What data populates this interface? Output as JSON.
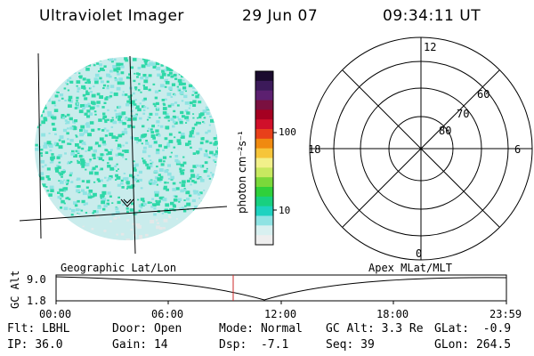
{
  "header": {
    "title": "Ultraviolet Imager",
    "date": "29 Jun 07",
    "time": "09:34:11 UT"
  },
  "colorbar": {
    "unit_label": "photon cm⁻²s⁻¹",
    "ticks": [
      "100",
      "10"
    ],
    "colors": [
      "#1a0b2e",
      "#3c1a5a",
      "#5c2070",
      "#7a1040",
      "#a50021",
      "#d0102a",
      "#e8401a",
      "#f08a10",
      "#f6c53a",
      "#f2f08a",
      "#c8e860",
      "#7ad83a",
      "#2fd03a",
      "#18d080",
      "#1ed2c0",
      "#8fe3e3",
      "#d8f0f0",
      "#eeeeee"
    ]
  },
  "polar_grid": {
    "labels": {
      "top": "12",
      "left": "18",
      "right": "6",
      "bottom": "0"
    },
    "lat_labels": [
      "60",
      "70",
      "80"
    ]
  },
  "lower_panel": {
    "left_label": "Geographic Lat/Lon",
    "right_label": "Apex MLat/MLT",
    "y_axis_label": "GC Alt",
    "y_ticks": [
      "9.0",
      "1.8"
    ],
    "x_ticks": [
      "00:00",
      "06:00",
      "12:00",
      "18:00",
      "23:59"
    ]
  },
  "footer": {
    "row1": [
      {
        "name": "Flt:",
        "value": "LBHL"
      },
      {
        "name": "Door:",
        "value": "Open"
      },
      {
        "name": "Mode:",
        "value": "Normal"
      },
      {
        "name": "GC Alt:",
        "value": "3.3 Re"
      },
      {
        "name": "GLat:",
        "value": "-0.9"
      }
    ],
    "row2": [
      {
        "name": "IP:",
        "value": "36.0"
      },
      {
        "name": "Gain:",
        "value": "14"
      },
      {
        "name": "Dsp:",
        "value": "-7.1"
      },
      {
        "name": "Seq:",
        "value": "39"
      },
      {
        "name": "GLon:",
        "value": "264.5"
      }
    ]
  },
  "colors": {
    "disk_base": "#c9ecec",
    "disk_dots_primary": "#2fd8a8",
    "disk_dots_secondary": "#8fe3e3",
    "marker_line": "#cc2a2a"
  }
}
